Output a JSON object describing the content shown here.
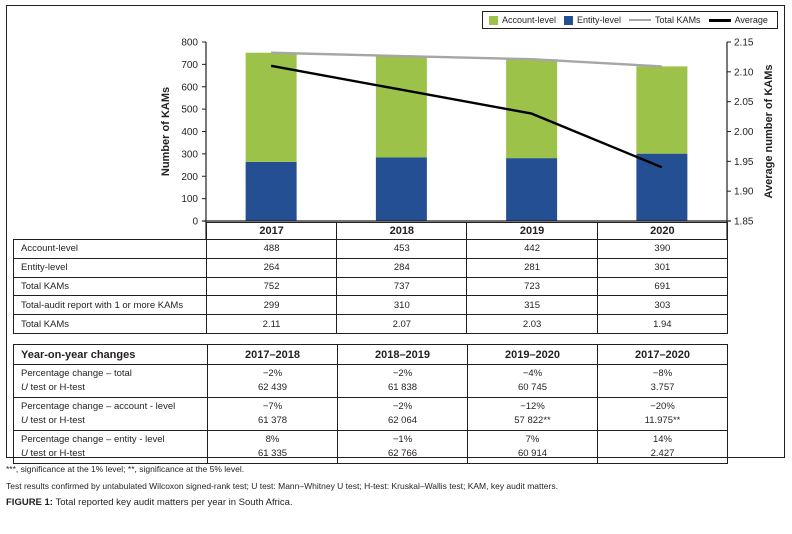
{
  "chart_data": {
    "type": "bar",
    "stacked": true,
    "categories": [
      "2017",
      "2018",
      "2019",
      "2020"
    ],
    "series": [
      {
        "name": "Entity-level",
        "type": "bar",
        "axis": "left",
        "color": "#254f93",
        "values": [
          264,
          284,
          281,
          301
        ]
      },
      {
        "name": "Account-level",
        "type": "bar",
        "axis": "left",
        "color": "#9dc24a",
        "values": [
          488,
          453,
          442,
          390
        ]
      },
      {
        "name": "Total KAMs",
        "type": "line",
        "axis": "left",
        "color": "#a6a6a6",
        "values": [
          752,
          737,
          723,
          691
        ]
      },
      {
        "name": "Average",
        "type": "line",
        "axis": "right",
        "color": "#000000",
        "values": [
          2.11,
          2.07,
          2.03,
          1.94
        ]
      }
    ],
    "ylabel": "Number of KAMs",
    "ylim": [
      0,
      800
    ],
    "yticks": [
      "0",
      "100",
      "200",
      "300",
      "400",
      "500",
      "600",
      "700",
      "800"
    ],
    "y2label": "Average number of KAMs",
    "y2lim": [
      1.85,
      2.15
    ],
    "y2ticks": [
      "1.85",
      "1.90",
      "1.95",
      "2.00",
      "2.05",
      "2.10",
      "2.15"
    ],
    "grid": false,
    "legend_position": "top-right",
    "legend": [
      {
        "label": "Account-level",
        "kind": "swatch",
        "color": "#9dc24a"
      },
      {
        "label": "Entity-level",
        "kind": "swatch",
        "color": "#254f93"
      },
      {
        "label": "Total KAMs",
        "kind": "line",
        "color": "#a6a6a6"
      },
      {
        "label": "Average",
        "kind": "line",
        "color": "#000000"
      }
    ]
  },
  "table1": {
    "headers": [
      "",
      "2017",
      "2018",
      "2019",
      "2020"
    ],
    "rows": [
      {
        "label": "Account-level",
        "values": [
          "488",
          "453",
          "442",
          "390"
        ]
      },
      {
        "label": "Entity-level",
        "values": [
          "264",
          "284",
          "281",
          "301"
        ]
      },
      {
        "label": "Total KAMs",
        "values": [
          "752",
          "737",
          "723",
          "691"
        ]
      },
      {
        "label": "Total-audit report with 1 or more KAMs",
        "values": [
          "299",
          "310",
          "315",
          "303"
        ]
      },
      {
        "label": "Total KAMs",
        "values": [
          "2.11",
          "2.07",
          "2.03",
          "1.94"
        ]
      }
    ]
  },
  "table2": {
    "headers": [
      "Year-on-year changes",
      "2017–2018",
      "2018–2019",
      "2019–2020",
      "2017–2020"
    ],
    "rows": [
      {
        "label": "Percentage change – total",
        "test_prefix": "U",
        "test_label": " test or H-test",
        "pct": [
          "−2%",
          "−2%",
          "−4%",
          "−8%"
        ],
        "test": [
          "62 439",
          "61 838",
          "60 745",
          "3.757"
        ]
      },
      {
        "label": "Percentage change – account - level",
        "test_prefix": "U",
        "test_label": " test or H-test",
        "pct": [
          "−7%",
          "−2%",
          "−12%",
          "−20%"
        ],
        "test": [
          "61 378",
          "62 064",
          "57 822**",
          "11.975**"
        ]
      },
      {
        "label": "Percentage change – entity - level",
        "test_prefix": "U",
        "test_label": " test or H-test",
        "pct": [
          "8%",
          "−1%",
          "7%",
          "14%"
        ],
        "test": [
          "61 335",
          "62 766",
          "60 914",
          "2.427"
        ]
      }
    ]
  },
  "notes": [
    "***, significance at the 1% level; **, significance at the 5% level.",
    "Test results confirmed by untabulated Wilcoxon signed-rank test; U test: Mann–Whitney U test; H-test: Kruskal–Wallis test; KAM, key audit matters."
  ],
  "caption": {
    "label": "FIGURE 1:",
    "text": " Total reported key audit matters per year in South Africa."
  }
}
